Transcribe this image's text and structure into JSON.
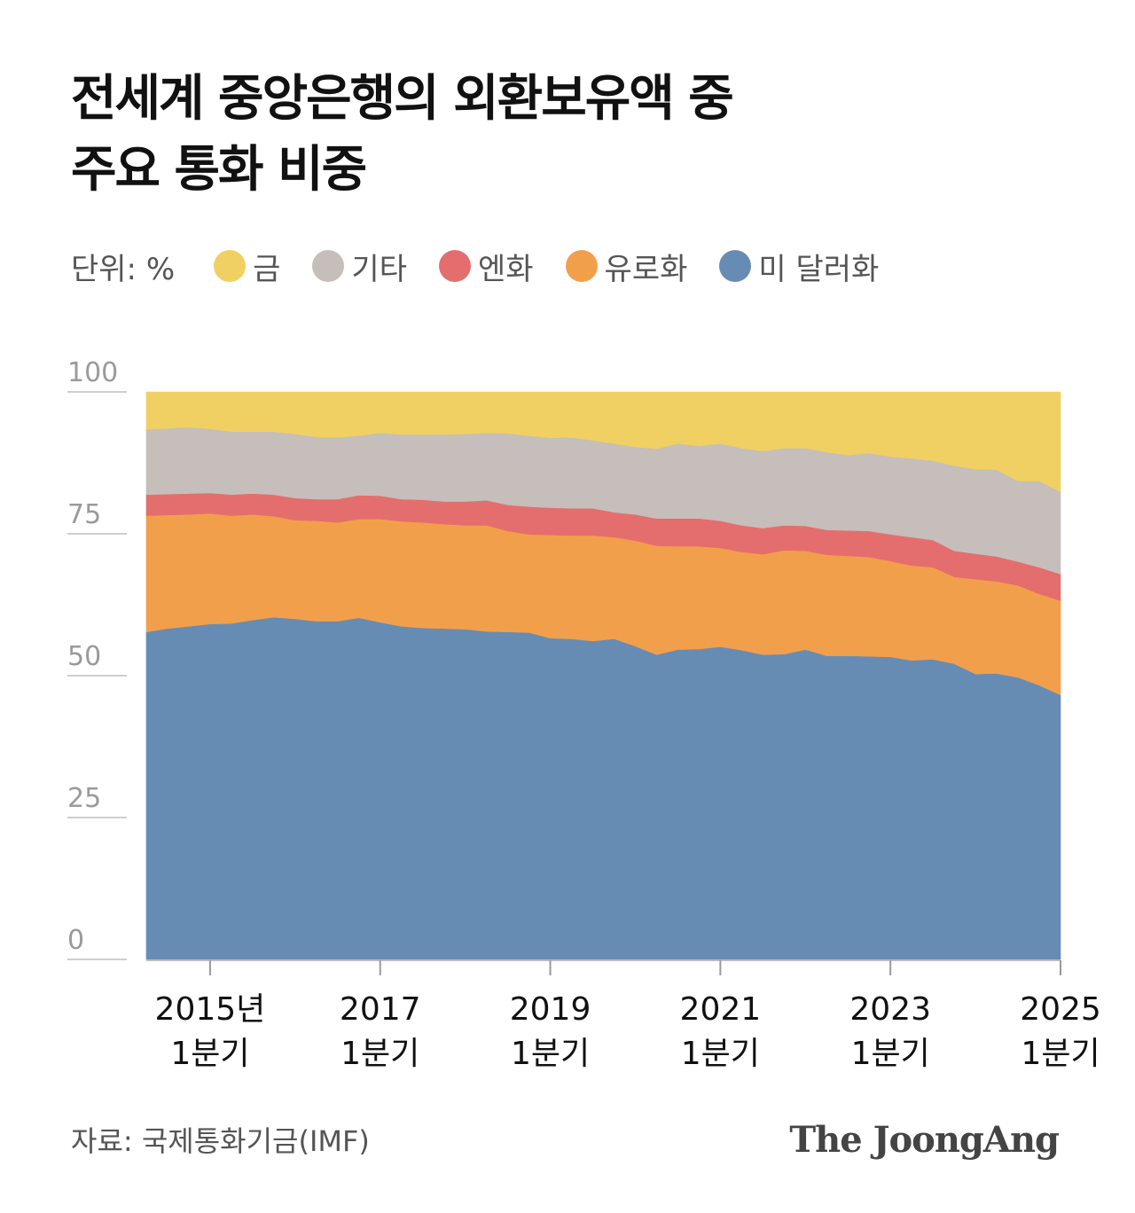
{
  "title": {
    "line1": "전세계 중앙은행의 외환보유액 중",
    "line2": "주요 통화 비중"
  },
  "legend": {
    "unit": "단위: %",
    "items": [
      {
        "key": "gold",
        "label": "금",
        "color": "#F0D062"
      },
      {
        "key": "other",
        "label": "기타",
        "color": "#C6BEBA"
      },
      {
        "key": "yen",
        "label": "엔화",
        "color": "#E46E6E"
      },
      {
        "key": "euro",
        "label": "유로화",
        "color": "#F29F4C"
      },
      {
        "key": "usd",
        "label": "미 달러화",
        "color": "#678CB4"
      }
    ]
  },
  "chart_data": {
    "type": "area",
    "stacked": true,
    "title": "전세계 중앙은행의 외환보유액 중 주요 통화 비중",
    "unit": "%",
    "ylim": [
      0,
      100
    ],
    "yticks": [
      "0",
      "25",
      "50",
      "75",
      "100"
    ],
    "x_start": "2014 Q2",
    "x_end": "2025 Q2",
    "x_tick_labels": [
      {
        "index": 3,
        "line1": "2015년",
        "line2": "1분기"
      },
      {
        "index": 11,
        "line1": "2017",
        "line2": "1분기"
      },
      {
        "index": 19,
        "line1": "2019",
        "line2": "1분기"
      },
      {
        "index": 27,
        "line1": "2021",
        "line2": "1분기"
      },
      {
        "index": 35,
        "line1": "2023",
        "line2": "1분기"
      },
      {
        "index": 43,
        "line1": "2025",
        "line2": "1분기"
      }
    ],
    "series": [
      {
        "key": "usd",
        "name": "미 달러화",
        "color": "#678CB4",
        "values": [
          57.7,
          58.3,
          58.7,
          59.1,
          59.2,
          59.8,
          60.3,
          60.0,
          59.6,
          59.6,
          60.2,
          59.4,
          58.7,
          58.4,
          58.3,
          58.2,
          57.8,
          57.7,
          57.6,
          56.6,
          56.5,
          56.1,
          56.5,
          55.2,
          53.7,
          54.6,
          54.7,
          55.1,
          54.5,
          53.7,
          53.8,
          54.6,
          53.5,
          53.5,
          53.4,
          53.3,
          52.7,
          52.9,
          52.1,
          50.3,
          50.4,
          49.7,
          48.3,
          46.6
        ]
      },
      {
        "key": "euro",
        "name": "유로화",
        "color": "#F29F4C",
        "values": [
          20.5,
          20.0,
          19.7,
          19.5,
          19.0,
          18.6,
          17.8,
          17.4,
          17.7,
          17.4,
          17.4,
          18.2,
          18.5,
          18.6,
          18.4,
          18.3,
          18.7,
          17.8,
          17.3,
          18.2,
          18.2,
          18.6,
          17.9,
          18.6,
          19.2,
          18.2,
          18.1,
          17.4,
          17.3,
          17.7,
          18.3,
          17.4,
          17.8,
          17.6,
          17.5,
          16.9,
          16.7,
          16.2,
          15.3,
          16.7,
          16.2,
          16.2,
          16.1,
          16.6
        ]
      },
      {
        "key": "yen",
        "name": "엔화",
        "color": "#E46E6E",
        "values": [
          3.7,
          3.7,
          3.7,
          3.6,
          3.7,
          3.7,
          3.8,
          3.9,
          3.8,
          4.1,
          4.2,
          4.1,
          3.9,
          4.0,
          4.0,
          4.2,
          4.4,
          4.6,
          4.9,
          4.8,
          4.8,
          4.8,
          4.4,
          4.6,
          4.8,
          4.9,
          4.9,
          4.8,
          4.7,
          4.6,
          4.4,
          4.4,
          4.4,
          4.5,
          4.6,
          4.7,
          5.0,
          4.8,
          4.6,
          4.5,
          4.4,
          4.2,
          4.7,
          4.7
        ]
      },
      {
        "key": "other",
        "name": "기타",
        "color": "#C6BEBA",
        "values": [
          11.5,
          11.6,
          11.7,
          11.3,
          11.1,
          10.9,
          11.1,
          11.3,
          11.0,
          10.9,
          10.5,
          11.1,
          11.4,
          11.5,
          11.8,
          11.9,
          11.9,
          12.6,
          12.5,
          12.3,
          12.5,
          12.0,
          12.1,
          11.9,
          12.3,
          13.2,
          12.8,
          13.6,
          13.6,
          13.6,
          13.6,
          13.7,
          13.7,
          13.3,
          13.7,
          13.7,
          13.9,
          14.0,
          15.0,
          14.9,
          15.3,
          14.2,
          15.2,
          14.5
        ]
      },
      {
        "key": "gold",
        "name": "금",
        "color": "#F0D062",
        "values": [
          6.6,
          6.4,
          6.2,
          6.5,
          7.0,
          7.0,
          7.0,
          7.4,
          7.9,
          8.0,
          7.7,
          7.2,
          7.5,
          7.5,
          7.5,
          7.4,
          7.2,
          7.3,
          7.7,
          8.1,
          8.0,
          8.5,
          9.1,
          9.7,
          10.0,
          9.1,
          9.5,
          9.1,
          9.9,
          10.4,
          9.9,
          9.9,
          10.6,
          11.1,
          10.8,
          11.4,
          11.7,
          12.1,
          13.0,
          13.6,
          13.7,
          15.7,
          15.7,
          17.6
        ]
      }
    ]
  },
  "source": "자료: 국제통화기금(IMF)",
  "brand": "The JoongAng"
}
